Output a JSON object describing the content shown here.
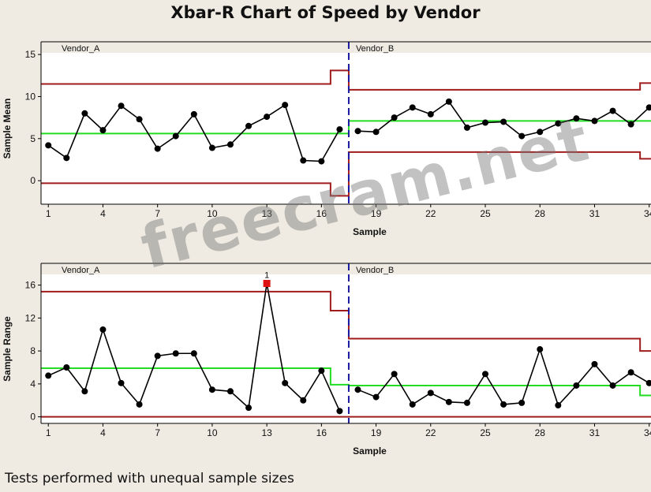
{
  "title": "Xbar-R Chart of Speed by Vendor",
  "footnote": "Tests performed with unequal sample sizes",
  "watermark": "freecram.net",
  "colors": {
    "background": "#efebe2",
    "data_line": "#000000",
    "center_line": "#22dd22",
    "control_limit": "#a01c1c",
    "stage_divider": "#1a1aa0",
    "flagged_point": "#dd1111"
  },
  "chart_data": [
    {
      "type": "line",
      "name": "xbar",
      "title": "",
      "xlabel": "Sample",
      "ylabel": "Sample Mean",
      "xlim": [
        0.6,
        34.1
      ],
      "ylim": [
        -2.8,
        15.2
      ],
      "x_ticks": [
        1,
        4,
        7,
        10,
        13,
        16,
        19,
        22,
        25,
        28,
        31,
        34
      ],
      "y_ticks": [
        0,
        5,
        10,
        15
      ],
      "stages": [
        "Vendor_A",
        "Vendor_B"
      ],
      "stage_boundary": 17.5,
      "x": [
        1,
        2,
        3,
        4,
        5,
        6,
        7,
        8,
        9,
        10,
        11,
        12,
        13,
        14,
        15,
        16,
        17,
        18,
        19,
        20,
        21,
        22,
        23,
        24,
        25,
        26,
        27,
        28,
        29,
        30,
        31,
        32,
        33,
        34
      ],
      "values": [
        4.2,
        2.7,
        8.0,
        6.0,
        8.9,
        7.3,
        3.8,
        5.3,
        7.9,
        3.9,
        4.3,
        6.5,
        7.6,
        9.0,
        2.4,
        2.3,
        6.1,
        5.9,
        5.8,
        7.5,
        8.7,
        7.9,
        9.4,
        6.3,
        6.9,
        7.0,
        5.3,
        5.8,
        6.8,
        7.4,
        7.1,
        8.3,
        6.7,
        8.7
      ],
      "center_line": [
        {
          "x_start": 0.6,
          "x_end": 17.5,
          "value": 5.6
        },
        {
          "x_start": 17.5,
          "x_end": 34.1,
          "value": 7.1
        }
      ],
      "ucl": [
        {
          "x_start": 0.6,
          "x_end": 16.5,
          "value": 11.5
        },
        {
          "x_start": 16.5,
          "x_end": 17.5,
          "value": 13.1
        },
        {
          "x_start": 17.5,
          "x_end": 33.5,
          "value": 10.8
        },
        {
          "x_start": 33.5,
          "x_end": 34.1,
          "value": 11.6
        }
      ],
      "lcl": [
        {
          "x_start": 0.6,
          "x_end": 16.5,
          "value": -0.3
        },
        {
          "x_start": 16.5,
          "x_end": 17.5,
          "value": -1.8
        },
        {
          "x_start": 17.5,
          "x_end": 33.5,
          "value": 3.4
        },
        {
          "x_start": 33.5,
          "x_end": 34.1,
          "value": 2.6
        }
      ],
      "flagged": []
    },
    {
      "type": "line",
      "name": "range",
      "title": "",
      "xlabel": "Sample",
      "ylabel": "Sample Range",
      "xlim": [
        0.6,
        34.1
      ],
      "ylim": [
        -0.8,
        17.3
      ],
      "x_ticks": [
        1,
        4,
        7,
        10,
        13,
        16,
        19,
        22,
        25,
        28,
        31,
        34
      ],
      "y_ticks": [
        0,
        4,
        8,
        12,
        16
      ],
      "stages": [
        "Vendor_A",
        "Vendor_B"
      ],
      "stage_boundary": 17.5,
      "x": [
        1,
        2,
        3,
        4,
        5,
        6,
        7,
        8,
        9,
        10,
        11,
        12,
        13,
        14,
        15,
        16,
        17,
        18,
        19,
        20,
        21,
        22,
        23,
        24,
        25,
        26,
        27,
        28,
        29,
        30,
        31,
        32,
        33,
        34
      ],
      "values": [
        5.0,
        6.0,
        3.1,
        10.6,
        4.1,
        1.5,
        7.4,
        7.7,
        7.7,
        3.3,
        3.1,
        1.1,
        16.2,
        4.1,
        2.0,
        5.6,
        0.7,
        3.3,
        2.4,
        5.2,
        1.5,
        2.9,
        1.8,
        1.7,
        5.2,
        1.5,
        1.7,
        8.2,
        1.4,
        3.8,
        6.4,
        3.8,
        5.4,
        4.1
      ],
      "center_line": [
        {
          "x_start": 0.6,
          "x_end": 16.5,
          "value": 5.9
        },
        {
          "x_start": 16.5,
          "x_end": 17.5,
          "value": 3.9
        },
        {
          "x_start": 17.5,
          "x_end": 33.5,
          "value": 3.8
        },
        {
          "x_start": 33.5,
          "x_end": 34.1,
          "value": 2.6
        }
      ],
      "ucl": [
        {
          "x_start": 0.6,
          "x_end": 16.5,
          "value": 15.2
        },
        {
          "x_start": 16.5,
          "x_end": 17.5,
          "value": 12.9
        },
        {
          "x_start": 17.5,
          "x_end": 33.5,
          "value": 9.5
        },
        {
          "x_start": 33.5,
          "x_end": 34.1,
          "value": 8.0
        }
      ],
      "lcl": [
        {
          "x_start": 0.6,
          "x_end": 34.1,
          "value": 0
        }
      ],
      "flagged": [
        {
          "x": 13,
          "label": "1"
        }
      ]
    }
  ]
}
